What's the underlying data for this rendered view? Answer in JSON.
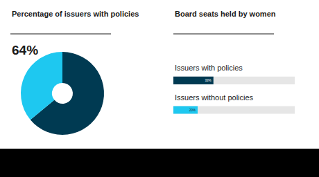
{
  "chart_data": [
    {
      "type": "pie",
      "title": "Percentage of issuers with policies",
      "values": [
        64,
        36
      ],
      "value_labels": [
        "64%",
        null
      ],
      "colors": [
        "#003a52",
        "#1ec8f0"
      ]
    },
    {
      "type": "bar",
      "title": "Board seats held by women",
      "orientation": "horizontal",
      "categories": [
        "Issuers with policies",
        "Issuers without policies"
      ],
      "values": [
        33,
        20
      ],
      "value_labels": [
        "33%",
        "20%"
      ],
      "data_labels": true,
      "colors": [
        "#003a52",
        "#1ec8f0"
      ],
      "xlim": [
        0,
        100
      ],
      "tick_labels": false,
      "grid": false
    }
  ]
}
